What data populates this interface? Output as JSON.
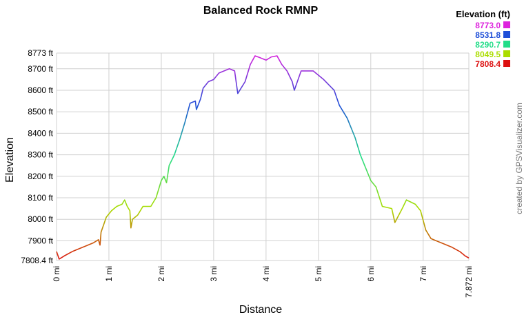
{
  "chart_data": {
    "type": "line",
    "title": "Balanced Rock RMNP",
    "x_label": "Distance",
    "y_label": "Elevation",
    "watermark": "created by GPSVisualizer.com",
    "x": [
      0,
      0.05,
      0.15,
      0.3,
      0.5,
      0.7,
      0.8,
      0.83,
      0.85,
      0.95,
      1.05,
      1.15,
      1.25,
      1.3,
      1.35,
      1.4,
      1.42,
      1.45,
      1.55,
      1.65,
      1.8,
      1.9,
      2.0,
      2.05,
      2.1,
      2.15,
      2.25,
      2.35,
      2.45,
      2.55,
      2.65,
      2.67,
      2.75,
      2.8,
      2.9,
      3.0,
      3.1,
      3.2,
      3.3,
      3.4,
      3.46,
      3.6,
      3.7,
      3.79,
      3.9,
      4.0,
      4.1,
      4.21,
      4.3,
      4.4,
      4.5,
      4.54,
      4.67,
      4.9,
      5.0,
      5.1,
      5.3,
      5.4,
      5.55,
      5.7,
      5.8,
      5.9,
      6.0,
      6.1,
      6.22,
      6.4,
      6.46,
      6.6,
      6.68,
      6.85,
      6.95,
      7.05,
      7.15,
      7.35,
      7.55,
      7.7,
      7.8,
      7.872
    ],
    "values": [
      7850,
      7815,
      7830,
      7850,
      7870,
      7890,
      7905,
      7880,
      7940,
      8010,
      8040,
      8060,
      8070,
      8090,
      8060,
      8040,
      7960,
      8000,
      8020,
      8060,
      8060,
      8100,
      8180,
      8200,
      8170,
      8250,
      8300,
      8370,
      8450,
      8540,
      8550,
      8510,
      8560,
      8610,
      8640,
      8650,
      8680,
      8690,
      8700,
      8690,
      8585,
      8640,
      8720,
      8760,
      8750,
      8740,
      8755,
      8760,
      8720,
      8690,
      8640,
      8600,
      8690,
      8690,
      8670,
      8650,
      8600,
      8530,
      8470,
      8380,
      8300,
      8240,
      8180,
      8150,
      8060,
      8050,
      7985,
      8050,
      8090,
      8070,
      8040,
      7950,
      7910,
      7890,
      7870,
      7850,
      7830,
      7820
    ],
    "xlim": [
      0,
      7.872
    ],
    "ylim": [
      7808.4,
      8773
    ],
    "xticks": [
      {
        "value": 0,
        "label": "0 mi"
      },
      {
        "value": 1,
        "label": "1 mi"
      },
      {
        "value": 2,
        "label": "2 mi"
      },
      {
        "value": 3,
        "label": "3 mi"
      },
      {
        "value": 4,
        "label": "4 mi"
      },
      {
        "value": 5,
        "label": "5 mi"
      },
      {
        "value": 6,
        "label": "6 mi"
      },
      {
        "value": 7,
        "label": "7 mi"
      },
      {
        "value": 7.872,
        "label": "7.872 mi"
      }
    ],
    "yticks": [
      {
        "value": 7808.4,
        "label": "7808.4 ft"
      },
      {
        "value": 7900,
        "label": "7900 ft"
      },
      {
        "value": 8000,
        "label": "8000 ft"
      },
      {
        "value": 8100,
        "label": "8100 ft"
      },
      {
        "value": 8200,
        "label": "8200 ft"
      },
      {
        "value": 8300,
        "label": "8300 ft"
      },
      {
        "value": 8400,
        "label": "8400 ft"
      },
      {
        "value": 8500,
        "label": "8500 ft"
      },
      {
        "value": 8600,
        "label": "8600 ft"
      },
      {
        "value": 8700,
        "label": "8700 ft"
      },
      {
        "value": 8773,
        "label": "8773 ft"
      }
    ],
    "grid": true,
    "legend": {
      "title": "Elevation (ft)",
      "items": [
        {
          "value": 8773.0,
          "label": "8773.0",
          "color": "#dd22dd"
        },
        {
          "value": 8531.8,
          "label": "8531.8",
          "color": "#1f4fd8"
        },
        {
          "value": 8290.7,
          "label": "8290.7",
          "color": "#22dd88"
        },
        {
          "value": 8049.5,
          "label": "8049.5",
          "color": "#aadd00"
        },
        {
          "value": 7808.4,
          "label": "7808.4",
          "color": "#dd1111"
        }
      ]
    }
  }
}
